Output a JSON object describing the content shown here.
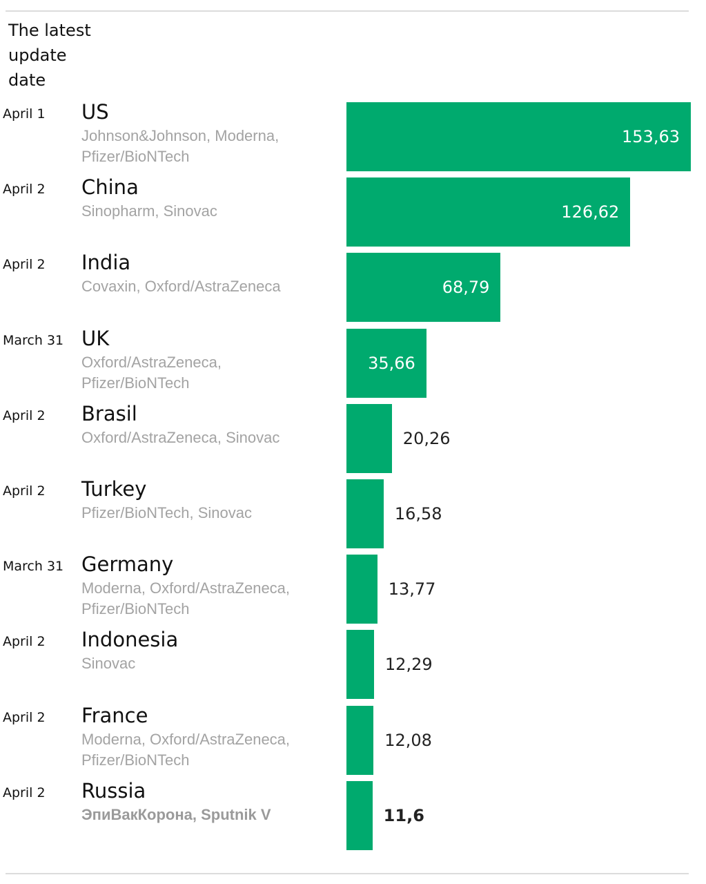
{
  "header": {
    "line1": "The latest",
    "line2": "update",
    "line3": "date"
  },
  "colors": {
    "bar": "#00aa6e",
    "vaccine_text": "#a3a3a3"
  },
  "chart_data": {
    "type": "bar",
    "orientation": "horizontal",
    "value_max": 153.63,
    "categories": [
      "US",
      "China",
      "India",
      "UK",
      "Brasil",
      "Turkey",
      "Germany",
      "Indonesia",
      "France",
      "Russia"
    ],
    "values": [
      153.63,
      126.62,
      68.79,
      35.66,
      20.26,
      16.58,
      13.77,
      12.29,
      12.08,
      11.6
    ],
    "rows": [
      {
        "date": "April 1",
        "country": "US",
        "vaccines": "Johnson&Johnson, Moderna, Pfizer/BioNTech",
        "value": 153.63,
        "label": "153,63"
      },
      {
        "date": "April 2",
        "country": "China",
        "vaccines": "Sinopharm, Sinovac",
        "value": 126.62,
        "label": "126,62"
      },
      {
        "date": "April 2",
        "country": "India",
        "vaccines": "Covaxin, Oxford/AstraZeneca",
        "value": 68.79,
        "label": "68,79"
      },
      {
        "date": "March 31",
        "country": "UK",
        "vaccines": "Oxford/AstraZeneca, Pfizer/BioNTech",
        "value": 35.66,
        "label": "35,66"
      },
      {
        "date": "April 2",
        "country": "Brasil",
        "vaccines": "Oxford/AstraZeneca, Sinovac",
        "value": 20.26,
        "label": "20,26"
      },
      {
        "date": "April 2",
        "country": "Turkey",
        "vaccines": "Pfizer/BioNTech, Sinovac",
        "value": 16.58,
        "label": "16,58"
      },
      {
        "date": "March 31",
        "country": "Germany",
        "vaccines": "Moderna, Oxford/AstraZeneca, Pfizer/BioNTech",
        "value": 13.77,
        "label": "13,77"
      },
      {
        "date": "April 2",
        "country": "Indonesia",
        "vaccines": "Sinovac",
        "value": 12.29,
        "label": "12,29"
      },
      {
        "date": "April 2",
        "country": "France",
        "vaccines": "Moderna, Oxford/AstraZeneca, Pfizer/BioNTech",
        "value": 12.08,
        "label": "12,08"
      },
      {
        "date": "April 2",
        "country": "Russia",
        "vaccines": "ЭпиВакКорона, Sputnik V",
        "value": 11.6,
        "label": "11,6"
      }
    ]
  }
}
